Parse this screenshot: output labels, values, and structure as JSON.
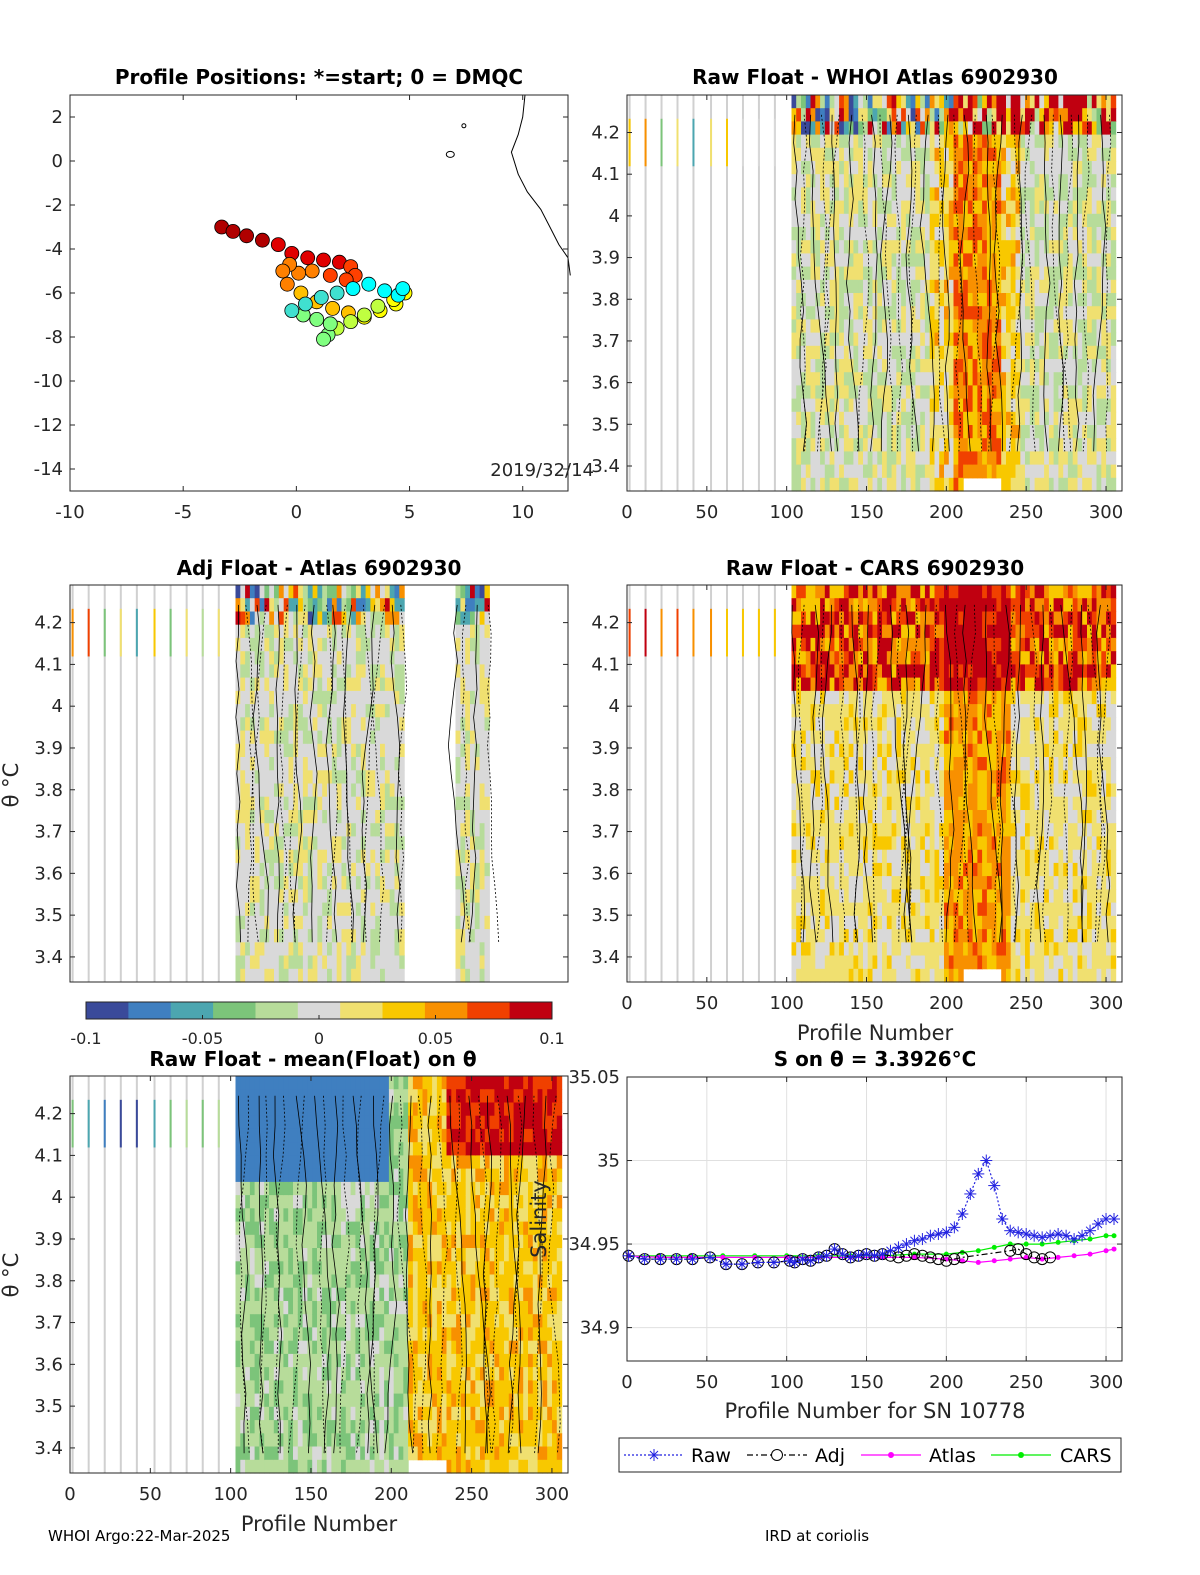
{
  "footer": {
    "left": "WHOI Argo:22-Mar-2025",
    "right": "IRD at coriolis"
  },
  "colors": {
    "raw": "#2020e0",
    "adj": "#000000",
    "atlas": "#ff00ff",
    "cars": "#00ee00",
    "colormap": [
      "#3a4a9a",
      "#3f7fc0",
      "#4ca6b0",
      "#7cc47a",
      "#b7dc9a",
      "#d9d9d9",
      "#f0e070",
      "#f8c800",
      "#f89000",
      "#f04000",
      "#c00010"
    ]
  },
  "chart_data": [
    {
      "id": "map",
      "type": "scatter",
      "title": "Profile Positions: *=start; 0 = DMQC",
      "annotation": "2019/32/14",
      "xlim": [
        -10,
        12
      ],
      "ylim": [
        -15,
        3
      ],
      "xticks": [
        -10,
        -5,
        0,
        5,
        10
      ],
      "yticks": [
        2,
        0,
        -2,
        -4,
        -6,
        -8,
        -10,
        -12,
        -14
      ],
      "track": {
        "lon": [
          -3.3,
          -2.8,
          -2.2,
          -1.5,
          -0.8,
          -0.2,
          0.5,
          1.2,
          1.9,
          2.4,
          2.6,
          2.2,
          1.5,
          0.7,
          0.1,
          -0.3,
          -0.6,
          -0.4,
          0.2,
          0.9,
          1.6,
          2.3,
          3.0,
          3.7,
          4.4,
          4.8,
          4.3,
          3.6,
          3.0,
          2.4,
          1.8,
          1.4,
          1.2,
          1.5,
          0.9,
          0.3,
          -0.2,
          0.4,
          1.1,
          1.8,
          2.5,
          3.2,
          3.9,
          4.5,
          4.7
        ],
        "lat": [
          -3.0,
          -3.2,
          -3.4,
          -3.6,
          -3.8,
          -4.2,
          -4.4,
          -4.5,
          -4.6,
          -4.8,
          -5.2,
          -5.4,
          -5.2,
          -5.0,
          -5.1,
          -4.7,
          -5.0,
          -5.6,
          -6.0,
          -6.4,
          -6.7,
          -6.9,
          -7.1,
          -6.8,
          -6.5,
          -6.0,
          -6.3,
          -6.6,
          -7.0,
          -7.3,
          -7.6,
          -7.9,
          -8.1,
          -7.4,
          -7.2,
          -7.0,
          -6.8,
          -6.5,
          -6.2,
          -6.0,
          -5.8,
          -5.6,
          -5.9,
          -6.1,
          -5.8
        ]
      }
    },
    {
      "id": "whoi",
      "type": "heatmap",
      "title": "Raw Float - WHOI Atlas  6902930",
      "xlim": [
        0,
        310
      ],
      "ylim": [
        3.34,
        4.29
      ],
      "xticks": [
        0,
        50,
        100,
        150,
        200,
        250,
        300
      ],
      "yticks": [
        4.2,
        4.1,
        4,
        3.9,
        3.8,
        3.7,
        3.6,
        3.5,
        3.4
      ]
    },
    {
      "id": "adj",
      "type": "heatmap",
      "title": "Adj Float - Atlas  6902930",
      "ylabel": "θ °C",
      "xlim": [
        0,
        310
      ],
      "ylim": [
        3.34,
        4.29
      ],
      "yticks": [
        4.2,
        4.1,
        4,
        3.9,
        3.8,
        3.7,
        3.6,
        3.5,
        3.4
      ]
    },
    {
      "id": "cars",
      "type": "heatmap",
      "title": "Raw Float - CARS  6902930",
      "xlabel": "Profile Number",
      "xlim": [
        0,
        310
      ],
      "ylim": [
        3.34,
        4.29
      ],
      "xticks": [
        0,
        50,
        100,
        150,
        200,
        250,
        300
      ],
      "yticks": [
        4.2,
        4.1,
        4,
        3.9,
        3.8,
        3.7,
        3.6,
        3.5,
        3.4
      ]
    },
    {
      "id": "colorbar",
      "type": "heatmap",
      "range": [
        -0.1,
        0.1
      ],
      "ticks": [
        "-0.1",
        "-0.05",
        "0",
        "0.05",
        "0.1"
      ]
    },
    {
      "id": "mean",
      "type": "heatmap",
      "title": "Raw Float - mean(Float) on θ",
      "xlabel": "Profile Number",
      "ylabel": "θ °C",
      "xlim": [
        0,
        310
      ],
      "ylim": [
        3.34,
        4.29
      ],
      "xticks": [
        0,
        50,
        100,
        150,
        200,
        250,
        300
      ],
      "yticks": [
        4.2,
        4.1,
        4,
        3.9,
        3.8,
        3.7,
        3.6,
        3.5,
        3.4
      ]
    },
    {
      "id": "salinity",
      "type": "line",
      "title": "S on θ = 3.3926°C",
      "xlabel": "Profile Number for SN 10778",
      "ylabel": "Salinity",
      "xlim": [
        0,
        310
      ],
      "ylim": [
        34.88,
        35.05
      ],
      "xticks": [
        0,
        50,
        100,
        150,
        200,
        250,
        300
      ],
      "yticks": [
        35.05,
        35,
        34.95,
        34.9
      ],
      "grid": true,
      "legend_position": "bottom",
      "series": [
        {
          "name": "Raw",
          "x": [
            1,
            11,
            21,
            31,
            41,
            52,
            62,
            72,
            82,
            92,
            102,
            105,
            110,
            115,
            120,
            125,
            130,
            135,
            140,
            145,
            150,
            155,
            160,
            165,
            170,
            175,
            180,
            185,
            190,
            195,
            200,
            205,
            210,
            215,
            220,
            225,
            230,
            235,
            240,
            245,
            250,
            255,
            260,
            265,
            270,
            275,
            280,
            285,
            290,
            295,
            300,
            305
          ],
          "y": [
            34.943,
            34.941,
            34.941,
            34.941,
            34.941,
            34.942,
            34.938,
            34.938,
            34.939,
            34.939,
            34.94,
            34.939,
            34.941,
            34.94,
            34.942,
            34.943,
            34.947,
            34.944,
            34.942,
            34.943,
            34.944,
            34.943,
            34.944,
            34.946,
            34.948,
            34.95,
            34.952,
            34.953,
            34.955,
            34.956,
            34.957,
            34.96,
            34.968,
            34.98,
            34.992,
            35.0,
            34.985,
            34.965,
            34.958,
            34.957,
            34.956,
            34.955,
            34.954,
            34.955,
            34.956,
            34.955,
            34.953,
            34.955,
            34.958,
            34.962,
            34.965,
            34.965
          ]
        },
        {
          "name": "Adj",
          "x": [
            1,
            11,
            21,
            31,
            41,
            52,
            62,
            72,
            82,
            92,
            102,
            105,
            110,
            115,
            120,
            125,
            130,
            135,
            140,
            145,
            150,
            155,
            160,
            165,
            170,
            175,
            180,
            185,
            190,
            195,
            200,
            205,
            210,
            240,
            245,
            250,
            255,
            260,
            265
          ],
          "y": [
            34.943,
            34.941,
            34.941,
            34.941,
            34.941,
            34.942,
            34.938,
            34.938,
            34.939,
            34.939,
            34.94,
            34.939,
            34.941,
            34.94,
            34.942,
            34.943,
            34.947,
            34.944,
            34.942,
            34.943,
            34.944,
            34.943,
            34.944,
            34.943,
            34.942,
            34.943,
            34.944,
            34.943,
            34.942,
            34.941,
            34.94,
            34.941,
            34.942,
            34.946,
            34.947,
            34.944,
            34.942,
            34.941,
            34.942
          ]
        },
        {
          "name": "Atlas",
          "x": [
            1,
            20,
            40,
            60,
            80,
            100,
            120,
            140,
            160,
            180,
            200,
            210,
            220,
            230,
            240,
            250,
            260,
            270,
            280,
            290,
            300,
            305
          ],
          "y": [
            34.943,
            34.942,
            34.942,
            34.942,
            34.942,
            34.942,
            34.942,
            34.942,
            34.942,
            34.942,
            34.941,
            34.94,
            34.939,
            34.94,
            34.941,
            34.942,
            34.941,
            34.942,
            34.943,
            34.944,
            34.946,
            34.947
          ]
        },
        {
          "name": "CARS",
          "x": [
            1,
            20,
            40,
            60,
            80,
            100,
            120,
            140,
            160,
            180,
            200,
            210,
            220,
            230,
            240,
            250,
            260,
            270,
            280,
            290,
            300,
            305
          ],
          "y": [
            34.943,
            34.943,
            34.943,
            34.943,
            34.943,
            34.943,
            34.943,
            34.943,
            34.943,
            34.944,
            34.944,
            34.945,
            34.946,
            34.948,
            34.95,
            34.95,
            34.95,
            34.951,
            34.952,
            34.953,
            34.955,
            34.955
          ]
        }
      ]
    }
  ]
}
